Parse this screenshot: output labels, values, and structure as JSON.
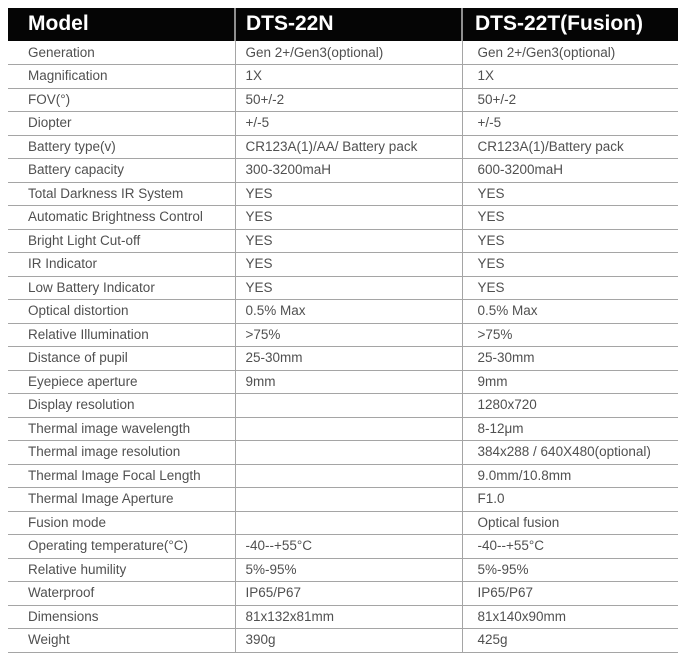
{
  "table": {
    "columns": [
      "Model",
      "DTS-22N",
      "DTS-22T(Fusion)"
    ],
    "rows": [
      {
        "label": "Generation",
        "dts22n": "Gen 2+/Gen3(optional)",
        "dts22t": "Gen 2+/Gen3(optional)"
      },
      {
        "label": "Magnification",
        "dts22n": "1X",
        "dts22t": "1X"
      },
      {
        "label": "FOV(°)",
        "dts22n": "50+/-2",
        "dts22t": "50+/-2"
      },
      {
        "label": "Diopter",
        "dts22n": "+/-5",
        "dts22t": "+/-5"
      },
      {
        "label": "Battery type(v)",
        "dts22n": "CR123A(1)/AA/ Battery pack",
        "dts22t": "CR123A(1)/Battery pack"
      },
      {
        "label": "Battery capacity",
        "dts22n": "300-3200maH",
        "dts22t": "600-3200maH"
      },
      {
        "label": "Total Darkness IR System",
        "dts22n": "YES",
        "dts22t": "YES"
      },
      {
        "label": "Automatic Brightness Control",
        "dts22n": "YES",
        "dts22t": "YES"
      },
      {
        "label": "Bright Light Cut-off",
        "dts22n": "YES",
        "dts22t": "YES"
      },
      {
        "label": "IR Indicator",
        "dts22n": "YES",
        "dts22t": "YES"
      },
      {
        "label": "Low Battery Indicator",
        "dts22n": "YES",
        "dts22t": "YES"
      },
      {
        "label": "Optical distortion",
        "dts22n": "0.5% Max",
        "dts22t": "0.5% Max"
      },
      {
        "label": "Relative Illumination",
        "dts22n": ">75%",
        "dts22t": ">75%"
      },
      {
        "label": "Distance of pupil",
        "dts22n": "25-30mm",
        "dts22t": "25-30mm"
      },
      {
        "label": "Eyepiece aperture",
        "dts22n": "9mm",
        "dts22t": "9mm"
      },
      {
        "label": "Display resolution",
        "dts22n": "",
        "dts22t": "1280x720"
      },
      {
        "label": "Thermal image wavelength",
        "dts22n": "",
        "dts22t": "8-12μm"
      },
      {
        "label": "Thermal image resolution",
        "dts22n": "",
        "dts22t": "384x288 / 640X480(optional)"
      },
      {
        "label": "Thermal Image Focal Length",
        "dts22n": "",
        "dts22t": "9.0mm/10.8mm"
      },
      {
        "label": "Thermal Image Aperture",
        "dts22n": "",
        "dts22t": "F1.0"
      },
      {
        "label": "Fusion mode",
        "dts22n": "",
        "dts22t": "Optical fusion"
      },
      {
        "label": "Operating temperature(°C)",
        "dts22n": "-40--+55°C",
        "dts22t": "-40--+55°C"
      },
      {
        "label": "Relative humility",
        "dts22n": "5%-95%",
        "dts22t": "5%-95%"
      },
      {
        "label": "Waterproof",
        "dts22n": "IP65/P67",
        "dts22t": "IP65/P67"
      },
      {
        "label": "Dimensions",
        "dts22n": "81x132x81mm",
        "dts22t": "81x140x90mm"
      },
      {
        "label": "Weight",
        "dts22n": "390g",
        "dts22t": "425g"
      }
    ]
  }
}
